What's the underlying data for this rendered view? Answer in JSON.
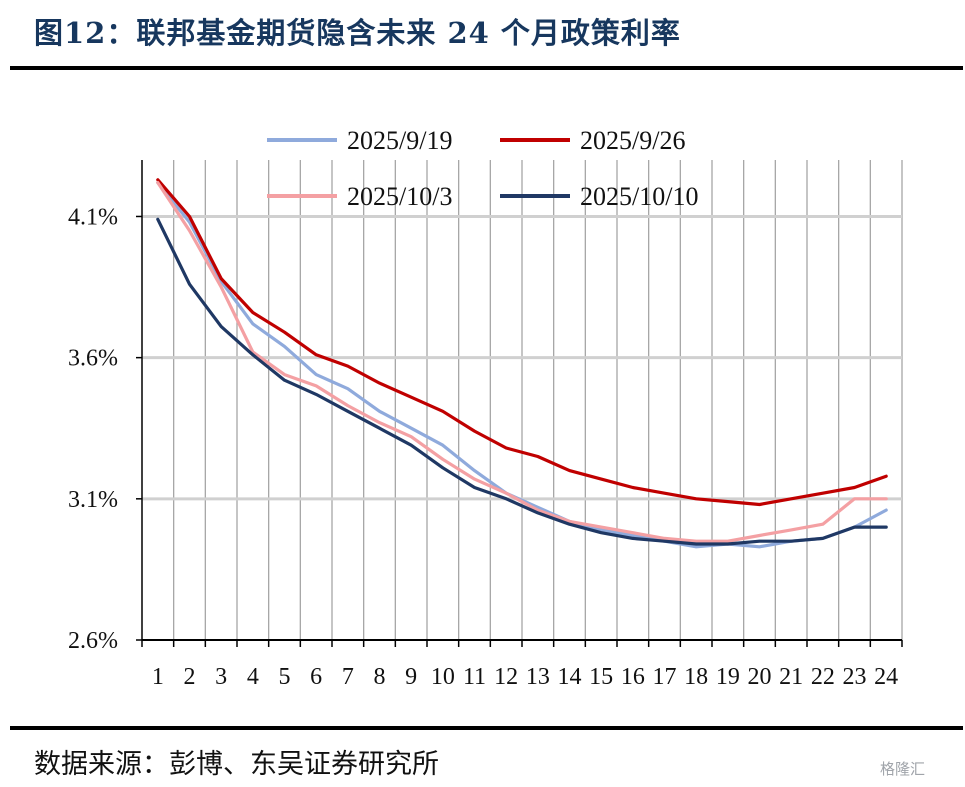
{
  "header": {
    "title": "图12：联邦基金期货隐含未来 24 个月政策利率"
  },
  "footer": {
    "source": "数据来源：彭博、东吴证券研究所",
    "watermark": "格隆汇"
  },
  "chart_data": {
    "type": "line",
    "title": "",
    "xlabel": "",
    "ylabel": "",
    "x": [
      1,
      2,
      3,
      4,
      5,
      6,
      7,
      8,
      9,
      10,
      11,
      12,
      13,
      14,
      15,
      16,
      17,
      18,
      19,
      20,
      21,
      22,
      23,
      24
    ],
    "ylim": [
      2.6,
      4.3
    ],
    "yticks": [
      2.6,
      3.1,
      3.6,
      4.1
    ],
    "ytick_labels": [
      "2.6%",
      "3.1%",
      "3.6%",
      "4.1%"
    ],
    "grid": "horizontal-and-vertical",
    "legend_position": "top",
    "series": [
      {
        "name": "2025/9/19",
        "color": "#8faadc",
        "values": [
          4.22,
          4.08,
          3.87,
          3.72,
          3.64,
          3.54,
          3.49,
          3.41,
          3.35,
          3.29,
          3.2,
          3.12,
          3.07,
          3.02,
          2.99,
          2.97,
          2.95,
          2.93,
          2.94,
          2.93,
          2.95,
          2.96,
          3.0,
          3.06
        ]
      },
      {
        "name": "2025/9/26",
        "color": "#c00000",
        "values": [
          4.23,
          4.1,
          3.88,
          3.76,
          3.69,
          3.61,
          3.57,
          3.51,
          3.46,
          3.41,
          3.34,
          3.28,
          3.25,
          3.2,
          3.17,
          3.14,
          3.12,
          3.1,
          3.09,
          3.08,
          3.1,
          3.12,
          3.14,
          3.18
        ]
      },
      {
        "name": "2025/10/3",
        "color": "#f4a0a3",
        "values": [
          4.22,
          4.05,
          3.85,
          3.62,
          3.54,
          3.5,
          3.43,
          3.37,
          3.32,
          3.24,
          3.17,
          3.12,
          3.06,
          3.02,
          3.0,
          2.98,
          2.96,
          2.95,
          2.95,
          2.97,
          2.99,
          3.01,
          3.1,
          3.1
        ]
      },
      {
        "name": "2025/10/10",
        "color": "#1f3864",
        "values": [
          4.09,
          3.86,
          3.71,
          3.61,
          3.52,
          3.47,
          3.41,
          3.35,
          3.29,
          3.21,
          3.14,
          3.1,
          3.05,
          3.01,
          2.98,
          2.96,
          2.95,
          2.94,
          2.94,
          2.95,
          2.95,
          2.96,
          3.0,
          3.0
        ]
      }
    ]
  }
}
